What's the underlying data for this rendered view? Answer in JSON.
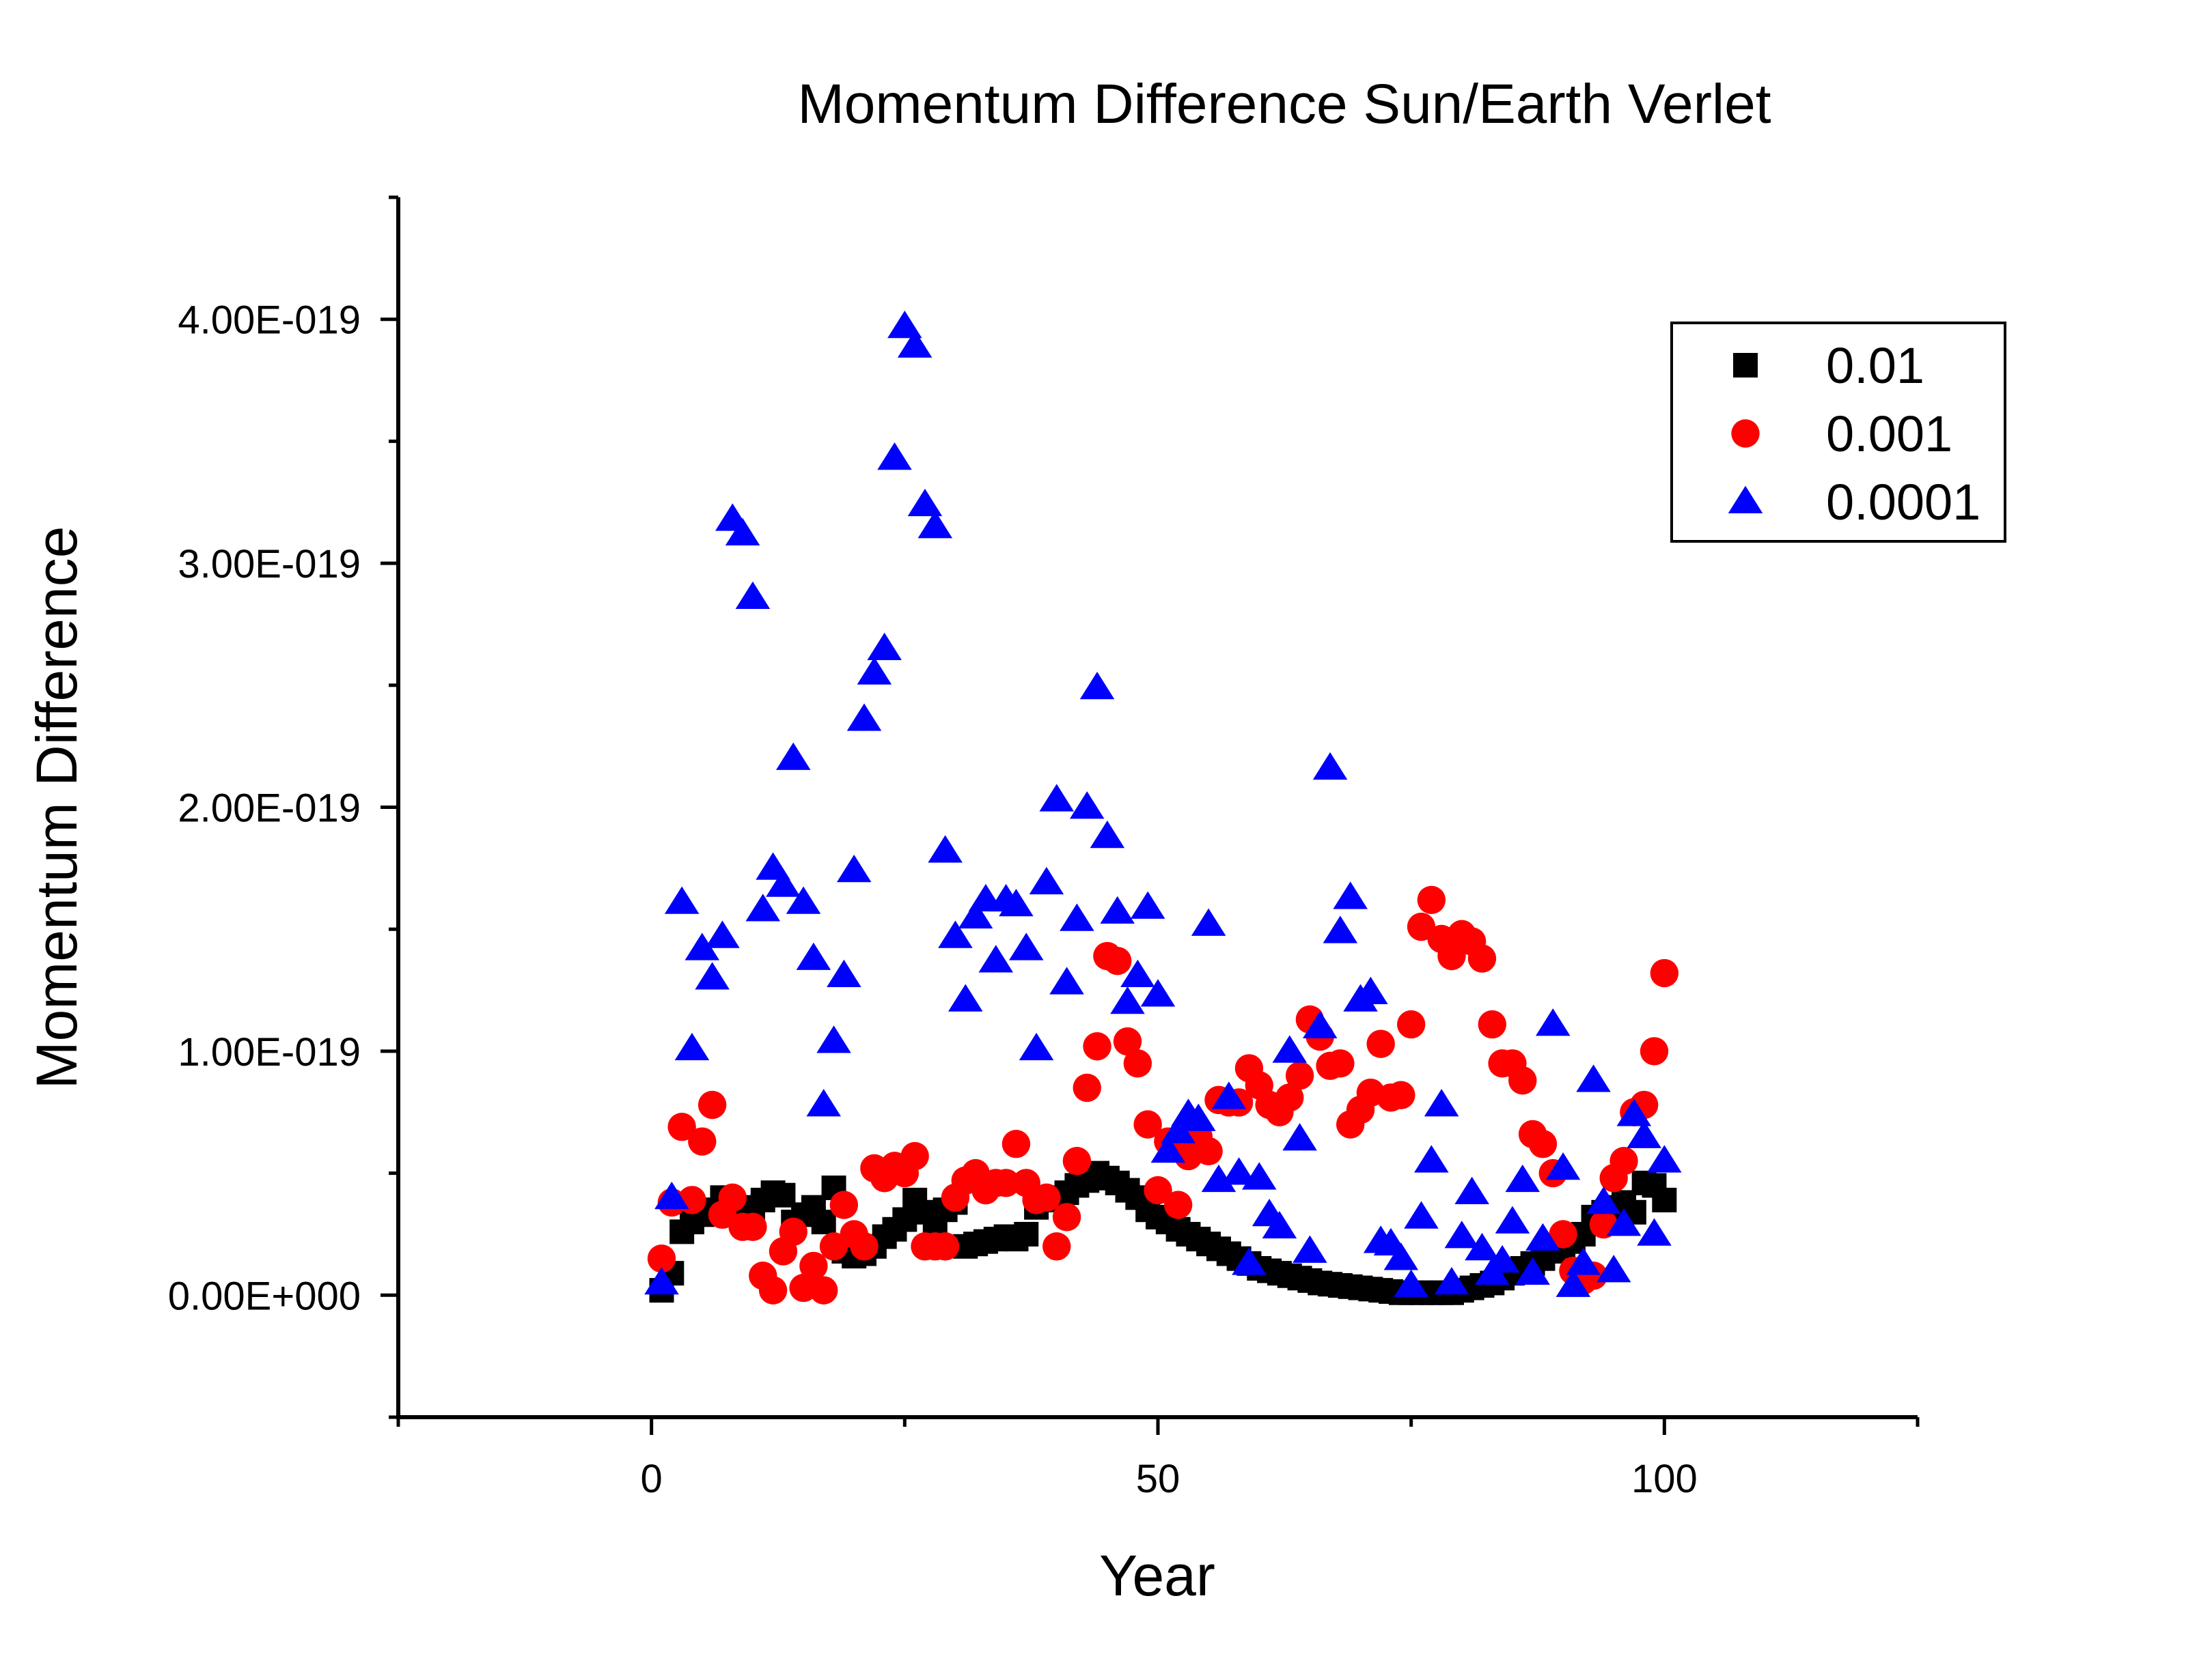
{
  "chart_data": {
    "type": "scatter",
    "title": "Momentum Difference Sun/Earth Verlet",
    "xlabel": "Year",
    "ylabel": "Momentum Difference",
    "xlim": [
      -25,
      125
    ],
    "ylim": [
      -5e-20,
      4.5e-19
    ],
    "x_ticks": [
      0,
      50,
      100
    ],
    "x_tick_labels": [
      "0",
      "50",
      "100"
    ],
    "y_ticks": [
      0,
      1e-19,
      2e-19,
      3e-19,
      4e-19
    ],
    "y_tick_labels": [
      "0.00E+000",
      "1.00E-019",
      "2.00E-019",
      "3.00E-019",
      "4.00E-019"
    ],
    "legend_position": "top-right",
    "grid": false,
    "series": [
      {
        "name": "0.01",
        "marker": "square",
        "color": "#000000",
        "x": [
          1,
          2,
          3,
          4,
          5,
          6,
          7,
          8,
          9,
          10,
          11,
          12,
          13,
          14,
          15,
          16,
          17,
          18,
          19,
          20,
          21,
          22,
          23,
          24,
          25,
          26,
          27,
          28,
          29,
          30,
          31,
          32,
          33,
          34,
          35,
          36,
          37,
          38,
          39,
          40,
          41,
          42,
          43,
          44,
          45,
          46,
          47,
          48,
          49,
          50,
          51,
          52,
          53,
          54,
          55,
          56,
          57,
          58,
          59,
          60,
          61,
          62,
          63,
          64,
          65,
          66,
          67,
          68,
          69,
          70,
          71,
          72,
          73,
          74,
          75,
          76,
          77,
          78,
          79,
          80,
          81,
          82,
          83,
          84,
          85,
          86,
          87,
          88,
          89,
          90,
          91,
          92,
          93,
          94,
          95,
          96,
          97,
          98,
          99,
          100
        ],
        "y": [
          2e-21,
          9e-21,
          2.6e-20,
          3e-20,
          3.3e-20,
          3.5e-20,
          4e-20,
          3.8e-20,
          3.2e-20,
          3.6e-20,
          3.9e-20,
          4.2e-20,
          4.1e-20,
          3e-20,
          3.3e-20,
          3.6e-20,
          3e-20,
          4.4e-20,
          1.8e-20,
          1.6e-20,
          1.7e-20,
          2e-20,
          2.4e-20,
          2.7e-20,
          3.1e-20,
          3.9e-20,
          3.4e-20,
          3e-20,
          3.5e-20,
          3.8e-20,
          2e-20,
          2.1e-20,
          2.2e-20,
          2.3e-20,
          2.4e-20,
          2.3e-20,
          2.5e-20,
          3.6e-20,
          3.9e-20,
          4e-20,
          4.2e-20,
          4.5e-20,
          4.7e-20,
          5e-20,
          4.8e-20,
          4.6e-20,
          4.3e-20,
          4e-20,
          3.5e-20,
          3.2e-20,
          3e-20,
          2.7e-20,
          2.5e-20,
          2.3e-20,
          2.1e-20,
          1.9e-20,
          1.7e-20,
          1.5e-20,
          1.3e-20,
          1.1e-20,
          1e-20,
          9e-21,
          8e-21,
          7e-21,
          6e-21,
          5e-21,
          4.5e-21,
          4e-21,
          3.5e-21,
          3e-21,
          2.5e-21,
          2e-21,
          1.5e-21,
          1e-21,
          1e-21,
          1e-21,
          1e-21,
          1e-21,
          1e-21,
          2e-21,
          3e-21,
          4e-21,
          5e-21,
          7e-21,
          9e-21,
          1.1e-20,
          1.3e-20,
          1.5e-20,
          1.8e-20,
          2e-20,
          2.2e-20,
          2.5e-20,
          3.2e-20,
          3.4e-20,
          3.6e-20,
          3.8e-20,
          3.4e-20,
          4.6e-20,
          4.5e-20,
          3.9e-20
        ]
      },
      {
        "name": "0.001",
        "marker": "circle",
        "color": "#ff0000",
        "x": [
          1,
          2,
          3,
          4,
          5,
          6,
          7,
          8,
          9,
          10,
          11,
          12,
          13,
          14,
          15,
          16,
          17,
          18,
          19,
          20,
          21,
          22,
          23,
          24,
          25,
          26,
          27,
          28,
          29,
          30,
          31,
          32,
          33,
          34,
          35,
          36,
          37,
          38,
          39,
          40,
          41,
          42,
          43,
          44,
          45,
          46,
          47,
          48,
          49,
          50,
          51,
          52,
          53,
          54,
          55,
          56,
          57,
          58,
          59,
          60,
          61,
          62,
          63,
          64,
          65,
          66,
          67,
          68,
          69,
          70,
          71,
          72,
          73,
          74,
          75,
          76,
          77,
          78,
          79,
          80,
          81,
          82,
          83,
          84,
          85,
          86,
          87,
          88,
          89,
          90,
          91,
          92,
          93,
          94,
          95,
          96,
          97,
          98,
          99,
          100
        ],
        "y": [
          1.5e-20,
          3.8e-20,
          6.9e-20,
          3.9e-20,
          6.3e-20,
          7.8e-20,
          3.3e-20,
          4e-20,
          2.8e-20,
          2.8e-20,
          8e-21,
          2e-21,
          1.8e-20,
          2.6e-20,
          3e-21,
          1.2e-20,
          2e-21,
          2e-20,
          3.7e-20,
          2.5e-20,
          2e-20,
          5.2e-20,
          4.8e-20,
          5.3e-20,
          5e-20,
          5.7e-20,
          2e-20,
          2e-20,
          2e-20,
          4e-20,
          4.7e-20,
          5e-20,
          4.3e-20,
          4.6e-20,
          4.6e-20,
          6.2e-20,
          4.6e-20,
          3.9e-20,
          4e-20,
          2e-20,
          3.2e-20,
          5.5e-20,
          8.5e-20,
          1.02e-19,
          1.39e-19,
          1.37e-19,
          1.04e-19,
          9.5e-20,
          7e-20,
          4.3e-20,
          6.3e-20,
          3.7e-20,
          5.7e-20,
          6.5e-20,
          5.9e-20,
          8e-20,
          7.9e-20,
          7.9e-20,
          9.3e-20,
          8.6e-20,
          7.8e-20,
          7.5e-20,
          8.1e-20,
          9e-20,
          1.13e-19,
          1.06e-19,
          9.4e-20,
          9.5e-20,
          7e-20,
          7.6e-20,
          8.3e-20,
          1.03e-19,
          8.1e-20,
          8.2e-20,
          1.11e-19,
          1.51e-19,
          1.62e-19,
          1.46e-19,
          1.39e-19,
          1.48e-19,
          1.45e-19,
          1.38e-19,
          1.11e-19,
          9.5e-20,
          9.5e-20,
          8.8e-20,
          6.6e-20,
          6.2e-20,
          5e-20,
          2.5e-20,
          1e-20,
          6e-21,
          8e-21,
          2.9e-20,
          4.8e-20,
          5.5e-20,
          7.5e-20,
          7.8e-20,
          1e-19,
          1.32e-19
        ]
      },
      {
        "name": "0.0001",
        "marker": "triangle",
        "color": "#0000ff",
        "x": [
          1,
          2,
          3,
          4,
          5,
          6,
          7,
          8,
          9,
          10,
          11,
          12,
          13,
          14,
          15,
          16,
          17,
          18,
          19,
          20,
          21,
          22,
          23,
          24,
          25,
          26,
          27,
          28,
          29,
          30,
          31,
          32,
          33,
          34,
          35,
          36,
          37,
          38,
          39,
          40,
          41,
          42,
          43,
          44,
          45,
          46,
          47,
          48,
          49,
          50,
          51,
          52,
          53,
          54,
          55,
          56,
          57,
          58,
          59,
          60,
          61,
          62,
          63,
          64,
          65,
          66,
          67,
          68,
          69,
          70,
          71,
          72,
          73,
          74,
          75,
          76,
          77,
          78,
          79,
          80,
          81,
          82,
          83,
          84,
          85,
          86,
          87,
          88,
          89,
          90,
          91,
          92,
          93,
          94,
          95,
          96,
          97,
          98,
          99,
          100
        ],
        "y": [
          5e-21,
          4e-20,
          1.61e-19,
          1.01e-19,
          1.42e-19,
          1.3e-19,
          1.47e-19,
          3.18e-19,
          3.12e-19,
          2.86e-19,
          1.58e-19,
          1.75e-19,
          1.68e-19,
          2.2e-19,
          1.61e-19,
          1.38e-19,
          7.8e-20,
          1.04e-19,
          1.31e-19,
          1.74e-19,
          2.36e-19,
          2.55e-19,
          2.65e-19,
          3.43e-19,
          3.97e-19,
          3.89e-19,
          3.24e-19,
          3.15e-19,
          1.82e-19,
          1.47e-19,
          1.21e-19,
          1.55e-19,
          1.62e-19,
          1.37e-19,
          1.62e-19,
          1.6e-19,
          1.42e-19,
          1.01e-19,
          1.69e-19,
          2.03e-19,
          1.28e-19,
          1.54e-19,
          2e-19,
          2.49e-19,
          1.88e-19,
          1.57e-19,
          1.2e-19,
          1.31e-19,
          1.59e-19,
          1.23e-19,
          5.9e-20,
          6.7e-20,
          7.4e-20,
          7.2e-20,
          1.52e-19,
          4.7e-20,
          8.1e-20,
          5e-20,
          1.3e-20,
          4.8e-20,
          3.3e-20,
          2.8e-20,
          1e-19,
          6.4e-20,
          1.8e-20,
          1.1e-19,
          2.16e-19,
          1.49e-19,
          1.63e-19,
          1.21e-19,
          1.24e-19,
          2.2e-20,
          2.1e-20,
          1.5e-20,
          4e-21,
          3.2e-20,
          5.5e-20,
          7.8e-20,
          5e-21,
          2.4e-20,
          4.2e-20,
          1.9e-20,
          9e-21,
          1.4e-20,
          3e-20,
          4.7e-20,
          9e-21,
          2.3e-20,
          1.11e-19,
          5.2e-20,
          4e-21,
          1.3e-20,
          8.8e-20,
          3.8e-20,
          1e-20,
          2.9e-20,
          7.4e-20,
          6.5e-20,
          2.5e-20,
          5.5e-20
        ]
      }
    ]
  }
}
